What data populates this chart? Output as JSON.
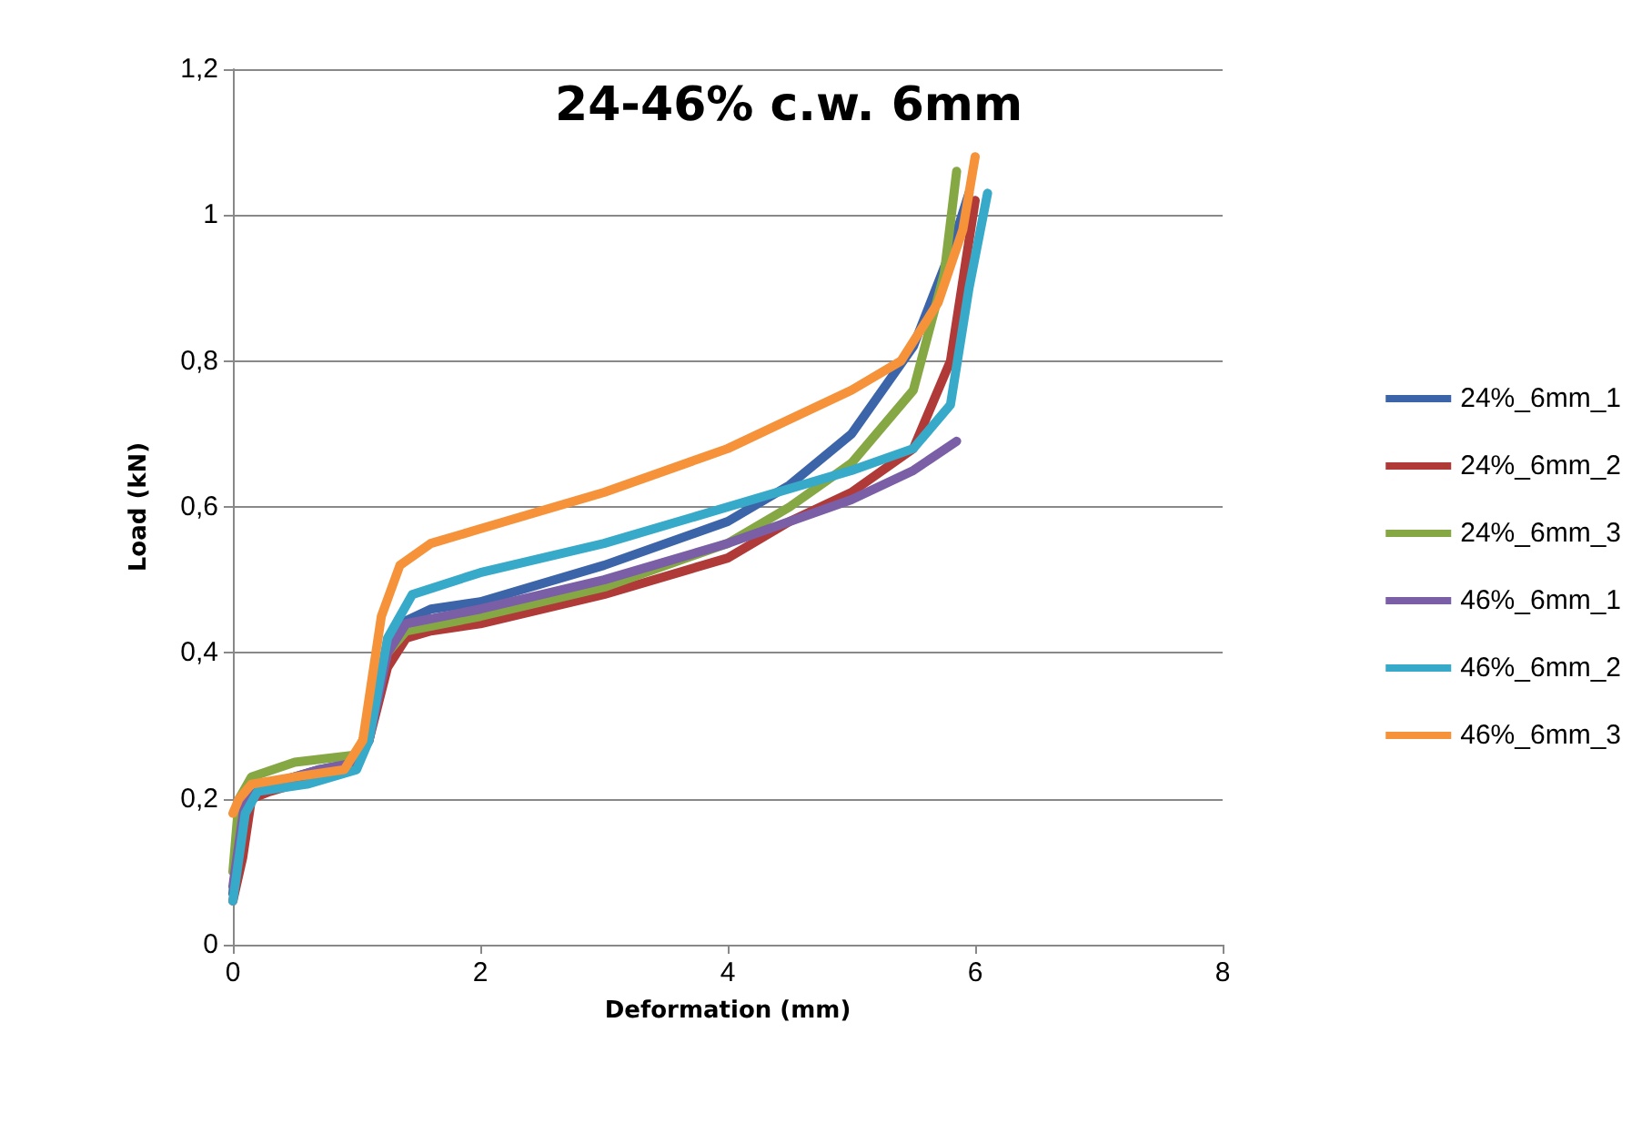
{
  "chart_data": {
    "type": "line",
    "title": "24-46% c.w. 6mm",
    "xlabel": "Deformation (mm)",
    "ylabel": "Load (kN)",
    "xlim": [
      0,
      8
    ],
    "xticks": [
      0,
      2,
      4,
      6,
      8
    ],
    "ylim": [
      0,
      1.2
    ],
    "yticks": [
      {
        "value": 0,
        "label": "0"
      },
      {
        "value": 0.2,
        "label": "0,2"
      },
      {
        "value": 0.4,
        "label": "0,4"
      },
      {
        "value": 0.6,
        "label": "0,6"
      },
      {
        "value": 0.8,
        "label": "0,8"
      },
      {
        "value": 1,
        "label": "1"
      },
      {
        "value": 1.2,
        "label": "1,2"
      }
    ],
    "grid": "y",
    "legend": "right",
    "marker": "none",
    "line_style": "solid",
    "series": [
      {
        "name": "24%_6mm_1",
        "color": "#3c64a8",
        "x": [
          0,
          0.05,
          0.12,
          0.3,
          0.7,
          1.0,
          1.1,
          1.2,
          1.35,
          1.6,
          2,
          3,
          4,
          4.5,
          5,
          5.5,
          5.8,
          5.95
        ],
        "values": [
          0.07,
          0.15,
          0.2,
          0.22,
          0.24,
          0.25,
          0.28,
          0.37,
          0.44,
          0.46,
          0.47,
          0.52,
          0.58,
          0.63,
          0.7,
          0.82,
          0.95,
          1.03
        ]
      },
      {
        "name": "24%_6mm_2",
        "color": "#b03a38",
        "x": [
          0,
          0.08,
          0.15,
          0.3,
          0.7,
          1.0,
          1.1,
          1.25,
          1.4,
          1.6,
          2,
          3,
          4,
          4.5,
          5,
          5.5,
          5.8,
          6.0
        ],
        "values": [
          0.06,
          0.12,
          0.2,
          0.21,
          0.23,
          0.25,
          0.28,
          0.38,
          0.42,
          0.43,
          0.44,
          0.48,
          0.53,
          0.58,
          0.62,
          0.68,
          0.8,
          1.02
        ]
      },
      {
        "name": "24%_6mm_3",
        "color": "#86a844",
        "x": [
          0,
          0.05,
          0.15,
          0.5,
          1.0,
          1.1,
          1.25,
          1.4,
          2,
          3,
          4,
          4.5,
          5,
          5.5,
          5.75,
          5.85
        ],
        "values": [
          0.1,
          0.2,
          0.23,
          0.25,
          0.26,
          0.3,
          0.4,
          0.43,
          0.45,
          0.49,
          0.55,
          0.6,
          0.66,
          0.76,
          0.92,
          1.06
        ]
      },
      {
        "name": "46%_6mm_1",
        "color": "#7a5ea6",
        "x": [
          0,
          0.1,
          0.3,
          0.7,
          1.0,
          1.1,
          1.25,
          1.4,
          2,
          3,
          4,
          5,
          5.5,
          5.85
        ],
        "values": [
          0.08,
          0.2,
          0.22,
          0.24,
          0.25,
          0.28,
          0.4,
          0.44,
          0.46,
          0.5,
          0.55,
          0.61,
          0.65,
          0.69
        ]
      },
      {
        "name": "46%_6mm_2",
        "color": "#36aac8",
        "x": [
          0,
          0.1,
          0.2,
          0.6,
          1.0,
          1.1,
          1.25,
          1.45,
          2,
          3,
          4,
          5,
          5.5,
          5.8,
          5.95,
          6.1
        ],
        "values": [
          0.06,
          0.18,
          0.21,
          0.22,
          0.24,
          0.28,
          0.42,
          0.48,
          0.51,
          0.55,
          0.6,
          0.65,
          0.68,
          0.74,
          0.9,
          1.03
        ]
      },
      {
        "name": "46%_6mm_3",
        "color": "#f5923a",
        "x": [
          0,
          0.05,
          0.15,
          0.5,
          0.9,
          1.05,
          1.2,
          1.35,
          1.6,
          2,
          3,
          4,
          4.5,
          5,
          5.4,
          5.7,
          5.9,
          6.0
        ],
        "values": [
          0.18,
          0.2,
          0.22,
          0.23,
          0.24,
          0.28,
          0.45,
          0.52,
          0.55,
          0.57,
          0.62,
          0.68,
          0.72,
          0.76,
          0.8,
          0.88,
          0.98,
          1.08
        ]
      }
    ]
  }
}
